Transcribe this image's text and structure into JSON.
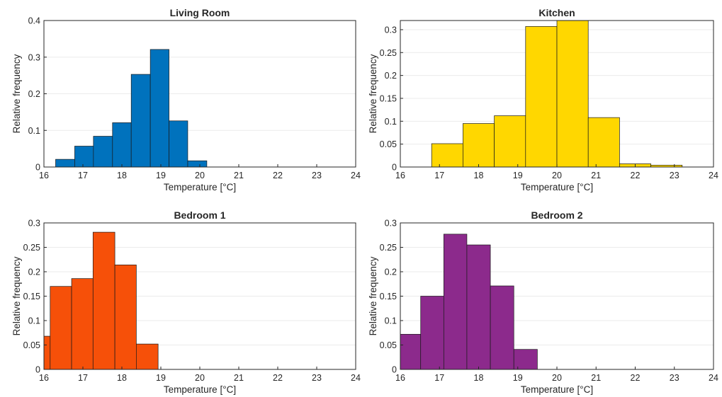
{
  "chart_data": [
    {
      "type": "bar",
      "title": "Living Room",
      "xlabel": "Temperature [°C]",
      "ylabel": "Relative frequency",
      "xlim": [
        16,
        24
      ],
      "ylim": [
        0,
        0.4
      ],
      "xticks": [
        16,
        17,
        18,
        19,
        20,
        21,
        22,
        23,
        24
      ],
      "yticks": [
        0,
        0.1,
        0.2,
        0.3,
        0.4
      ],
      "ytick_labels": [
        "0",
        "0.1",
        "0.2",
        "0.3",
        "0.4"
      ],
      "grid": true,
      "color": "#0072BD",
      "bin_edges": [
        16.3,
        16.79,
        17.27,
        17.76,
        18.24,
        18.73,
        19.21,
        19.69,
        20.18
      ],
      "values": [
        0.021,
        0.057,
        0.084,
        0.121,
        0.253,
        0.321,
        0.126,
        0.017
      ]
    },
    {
      "type": "bar",
      "title": "Kitchen",
      "xlabel": "Temperature [°C]",
      "ylabel": "Relative frequency",
      "xlim": [
        16,
        24
      ],
      "ylim": [
        0,
        0.32
      ],
      "xticks": [
        16,
        17,
        18,
        19,
        20,
        21,
        22,
        23,
        24
      ],
      "yticks": [
        0,
        0.05,
        0.1,
        0.15,
        0.2,
        0.25,
        0.3
      ],
      "ytick_labels": [
        "0",
        "0.05",
        "0.1",
        "0.15",
        "0.2",
        "0.25",
        "0.3"
      ],
      "grid": true,
      "color": "#FFD700",
      "bin_edges": [
        16.8,
        17.6,
        18.4,
        19.2,
        20.0,
        20.8,
        21.6,
        22.4,
        23.2
      ],
      "values": [
        0.051,
        0.095,
        0.112,
        0.307,
        0.32,
        0.108,
        0.007,
        0.004
      ]
    },
    {
      "type": "bar",
      "title": "Bedroom 1",
      "xlabel": "Temperature [°C]",
      "ylabel": "Relative frequency",
      "xlim": [
        16,
        24
      ],
      "ylim": [
        0,
        0.3
      ],
      "xticks": [
        16,
        17,
        18,
        19,
        20,
        21,
        22,
        23,
        24
      ],
      "yticks": [
        0,
        0.05,
        0.1,
        0.15,
        0.2,
        0.25,
        0.3
      ],
      "ytick_labels": [
        "0",
        "0.05",
        "0.1",
        "0.15",
        "0.2",
        "0.25",
        "0.3"
      ],
      "grid": true,
      "color": "#F65009",
      "bin_edges": [
        16.0,
        16.16,
        16.71,
        17.26,
        17.82,
        18.37,
        18.93
      ],
      "values": [
        0.068,
        0.17,
        0.186,
        0.281,
        0.214,
        0.052
      ]
    },
    {
      "type": "bar",
      "title": "Bedroom 2",
      "xlabel": "Temperature [°C]",
      "ylabel": "Relative frequency",
      "xlim": [
        16,
        24
      ],
      "ylim": [
        0,
        0.3
      ],
      "xticks": [
        16,
        17,
        18,
        19,
        20,
        21,
        22,
        23,
        24
      ],
      "yticks": [
        0,
        0.05,
        0.1,
        0.15,
        0.2,
        0.25,
        0.3
      ],
      "ytick_labels": [
        "0",
        "0.05",
        "0.1",
        "0.15",
        "0.2",
        "0.25",
        "0.3"
      ],
      "grid": true,
      "color": "#8C2A8C",
      "bin_edges": [
        16.0,
        16.52,
        17.11,
        17.7,
        18.3,
        18.9,
        19.5
      ],
      "values": [
        0.072,
        0.15,
        0.277,
        0.255,
        0.171,
        0.041
      ]
    }
  ]
}
